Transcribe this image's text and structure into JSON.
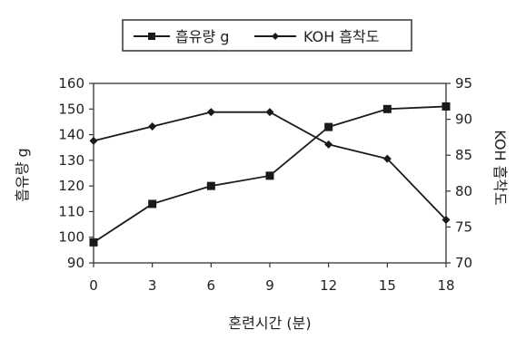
{
  "chart_data": {
    "type": "line",
    "xlabel": "혼련시간 (분)",
    "ylabel_left": "흡유량 g",
    "ylabel_right": "KOH 흡착도",
    "x": [
      0,
      3,
      6,
      9,
      12,
      15,
      18
    ],
    "x_tick_labels": [
      "0",
      "3",
      "6",
      "9",
      "12",
      "15",
      "18"
    ],
    "ylim_left": [
      90,
      160
    ],
    "y_ticks_left": [
      "90",
      "100",
      "110",
      "120",
      "130",
      "140",
      "150",
      "160"
    ],
    "ylim_right": [
      70,
      95
    ],
    "y_ticks_right": [
      "70",
      "75",
      "80",
      "85",
      "90",
      "95"
    ],
    "grid": false,
    "legend_position": "top",
    "series": [
      {
        "name": "흡유량 g",
        "axis": "left",
        "marker": "square",
        "values": [
          98,
          113,
          120,
          124,
          143,
          150,
          151
        ]
      },
      {
        "name": "KOH 흡착도",
        "axis": "right",
        "marker": "diamond",
        "values": [
          87,
          89,
          91,
          91,
          86.5,
          84.5,
          76
        ]
      }
    ],
    "colors": {
      "line": "#1a1a1a",
      "axis": "#333333"
    }
  }
}
